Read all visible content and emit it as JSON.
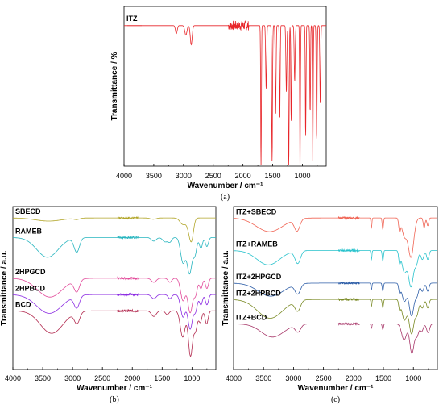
{
  "chart_data": [
    {
      "type": "line",
      "panel_label": "(a)",
      "xlabel": "Wavenumber / cm⁻¹",
      "ylabel": "Transmittance / %",
      "xlim": [
        4000,
        600
      ],
      "x_ticks": [
        "4000",
        "3500",
        "3000",
        "2500",
        "2000",
        "1500",
        "1000"
      ],
      "series": [
        {
          "name": "ITZ",
          "color": "#e8262a",
          "baseline": 0.88,
          "bands": [
            [
              3120,
              0.05,
              15
            ],
            [
              2960,
              0.06,
              18
            ],
            [
              2870,
              0.12,
              16
            ],
            [
              1696,
              0.88,
              6
            ],
            [
              1610,
              0.4,
              8
            ],
            [
              1510,
              0.85,
              7
            ],
            [
              1450,
              0.55,
              7
            ],
            [
              1380,
              0.6,
              6
            ],
            [
              1270,
              0.42,
              8
            ],
            [
              1230,
              0.88,
              7
            ],
            [
              1190,
              0.6,
              6
            ],
            [
              1130,
              0.35,
              8
            ],
            [
              1040,
              0.95,
              6
            ],
            [
              945,
              0.7,
              6
            ],
            [
              870,
              0.55,
              6
            ],
            [
              825,
              0.88,
              6
            ],
            [
              760,
              0.72,
              7
            ],
            [
              700,
              0.5,
              7
            ]
          ]
        }
      ]
    },
    {
      "type": "line",
      "panel_label": "(b)",
      "xlabel": "Wavenumber / cm⁻¹",
      "ylabel": "Transmittance / a.u.",
      "xlim": [
        4000,
        600
      ],
      "x_ticks": [
        "4000",
        "3500",
        "3000",
        "2500",
        "2000",
        "1500",
        "1000"
      ],
      "series": [
        {
          "name": "SBECD",
          "color": "#b2a62a",
          "offset": 0.93,
          "scale": 0.16,
          "bands": [
            [
              3400,
              0.12,
              220
            ],
            [
              2930,
              0.05,
              50
            ],
            [
              1650,
              0.05,
              50
            ],
            [
              1150,
              0.25,
              50
            ],
            [
              1030,
              0.6,
              40
            ],
            [
              1000,
              0.4,
              30
            ]
          ]
        },
        {
          "name": "RAMEB",
          "color": "#27b5bf",
          "offset": 0.81,
          "scale": 0.22,
          "bands": [
            [
              3420,
              0.55,
              180
            ],
            [
              2930,
              0.4,
              45
            ],
            [
              1640,
              0.1,
              40
            ],
            [
              1450,
              0.12,
              40
            ],
            [
              1370,
              0.12,
              30
            ],
            [
              1150,
              0.7,
              40
            ],
            [
              1040,
              1.0,
              40
            ],
            [
              950,
              0.45,
              30
            ],
            [
              850,
              0.3,
              25
            ],
            [
              750,
              0.25,
              25
            ]
          ]
        },
        {
          "name": "2HPGCD",
          "color": "#e24a9a",
          "offset": 0.56,
          "scale": 0.21,
          "bands": [
            [
              3380,
              0.55,
              210
            ],
            [
              2930,
              0.35,
              45
            ],
            [
              1640,
              0.12,
              40
            ],
            [
              1370,
              0.12,
              30
            ],
            [
              1150,
              0.65,
              40
            ],
            [
              1030,
              1.0,
              40
            ],
            [
              940,
              0.45,
              30
            ],
            [
              850,
              0.3,
              25
            ],
            [
              750,
              0.3,
              25
            ]
          ]
        },
        {
          "name": "2HPBCD",
          "color": "#8b2be2",
          "offset": 0.46,
          "scale": 0.21,
          "bands": [
            [
              3390,
              0.55,
              210
            ],
            [
              2930,
              0.35,
              45
            ],
            [
              1640,
              0.12,
              40
            ],
            [
              1370,
              0.12,
              30
            ],
            [
              1150,
              0.65,
              40
            ],
            [
              1030,
              1.0,
              40
            ],
            [
              940,
              0.45,
              30
            ],
            [
              850,
              0.3,
              25
            ],
            [
              750,
              0.3,
              25
            ]
          ]
        },
        {
          "name": "BCD",
          "color": "#b22a4f",
          "offset": 0.36,
          "scale": 0.23,
          "bands": [
            [
              3350,
              0.6,
              190
            ],
            [
              2925,
              0.3,
              45
            ],
            [
              1640,
              0.15,
              40
            ],
            [
              1415,
              0.1,
              30
            ],
            [
              1155,
              0.7,
              40
            ],
            [
              1025,
              1.2,
              35
            ],
            [
              940,
              0.5,
              30
            ],
            [
              860,
              0.3,
              25
            ],
            [
              755,
              0.35,
              25
            ]
          ]
        }
      ]
    },
    {
      "type": "line",
      "panel_label": "(c)",
      "xlabel": "Wavenumber / cm⁻¹",
      "ylabel": "Transmittance / a.u.",
      "xlim": [
        4000,
        600
      ],
      "x_ticks": [
        "4000",
        "3500",
        "3000",
        "2500",
        "2000",
        "1500",
        "1000"
      ],
      "series": [
        {
          "name": "ITZ+SBECD",
          "color": "#f06454",
          "offset": 0.93,
          "scale": 0.24,
          "bands": [
            [
              3400,
              0.35,
              220
            ],
            [
              2940,
              0.3,
              45
            ],
            [
              1700,
              0.25,
              8
            ],
            [
              1510,
              0.3,
              10
            ],
            [
              1230,
              0.3,
              15
            ],
            [
              1150,
              0.45,
              40
            ],
            [
              1040,
              1.0,
              45
            ],
            [
              820,
              0.25,
              15
            ],
            [
              760,
              0.2,
              15
            ]
          ]
        },
        {
          "name": "ITZ+RAMEB",
          "color": "#27c2cc",
          "offset": 0.73,
          "scale": 0.22,
          "bands": [
            [
              3420,
              0.4,
              190
            ],
            [
              2930,
              0.35,
              45
            ],
            [
              1700,
              0.25,
              8
            ],
            [
              1510,
              0.3,
              10
            ],
            [
              1230,
              0.3,
              15
            ],
            [
              1150,
              0.6,
              40
            ],
            [
              1040,
              1.0,
              40
            ],
            [
              950,
              0.35,
              30
            ],
            [
              850,
              0.25,
              25
            ],
            [
              760,
              0.25,
              20
            ]
          ]
        },
        {
          "name": "ITZ+2HPGCD",
          "color": "#2f5fa8",
          "offset": 0.53,
          "scale": 0.2,
          "bands": [
            [
              3380,
              0.4,
              210
            ],
            [
              2930,
              0.3,
              45
            ],
            [
              1700,
              0.2,
              8
            ],
            [
              1510,
              0.25,
              10
            ],
            [
              1230,
              0.25,
              15
            ],
            [
              1150,
              0.55,
              40
            ],
            [
              1030,
              1.0,
              40
            ],
            [
              940,
              0.35,
              30
            ],
            [
              850,
              0.25,
              25
            ],
            [
              760,
              0.25,
              20
            ]
          ]
        },
        {
          "name": "ITZ+2HPBCD",
          "color": "#7a8a25",
          "offset": 0.43,
          "scale": 0.21,
          "bands": [
            [
              3390,
              0.55,
              210
            ],
            [
              2930,
              0.3,
              45
            ],
            [
              1700,
              0.2,
              8
            ],
            [
              1510,
              0.25,
              10
            ],
            [
              1230,
              0.25,
              15
            ],
            [
              1150,
              0.6,
              40
            ],
            [
              1030,
              1.0,
              40
            ],
            [
              940,
              0.4,
              30
            ],
            [
              850,
              0.25,
              25
            ],
            [
              760,
              0.25,
              20
            ]
          ]
        },
        {
          "name": "ITZ+BCD",
          "color": "#a8386a",
          "offset": 0.28,
          "scale": 0.18,
          "bands": [
            [
              3350,
              0.45,
              190
            ],
            [
              2925,
              0.25,
              45
            ],
            [
              1700,
              0.15,
              8
            ],
            [
              1510,
              0.2,
              10
            ],
            [
              1155,
              0.55,
              40
            ],
            [
              1025,
              1.0,
              35
            ],
            [
              940,
              0.4,
              30
            ],
            [
              860,
              0.25,
              25
            ],
            [
              755,
              0.3,
              25
            ]
          ]
        }
      ]
    }
  ]
}
